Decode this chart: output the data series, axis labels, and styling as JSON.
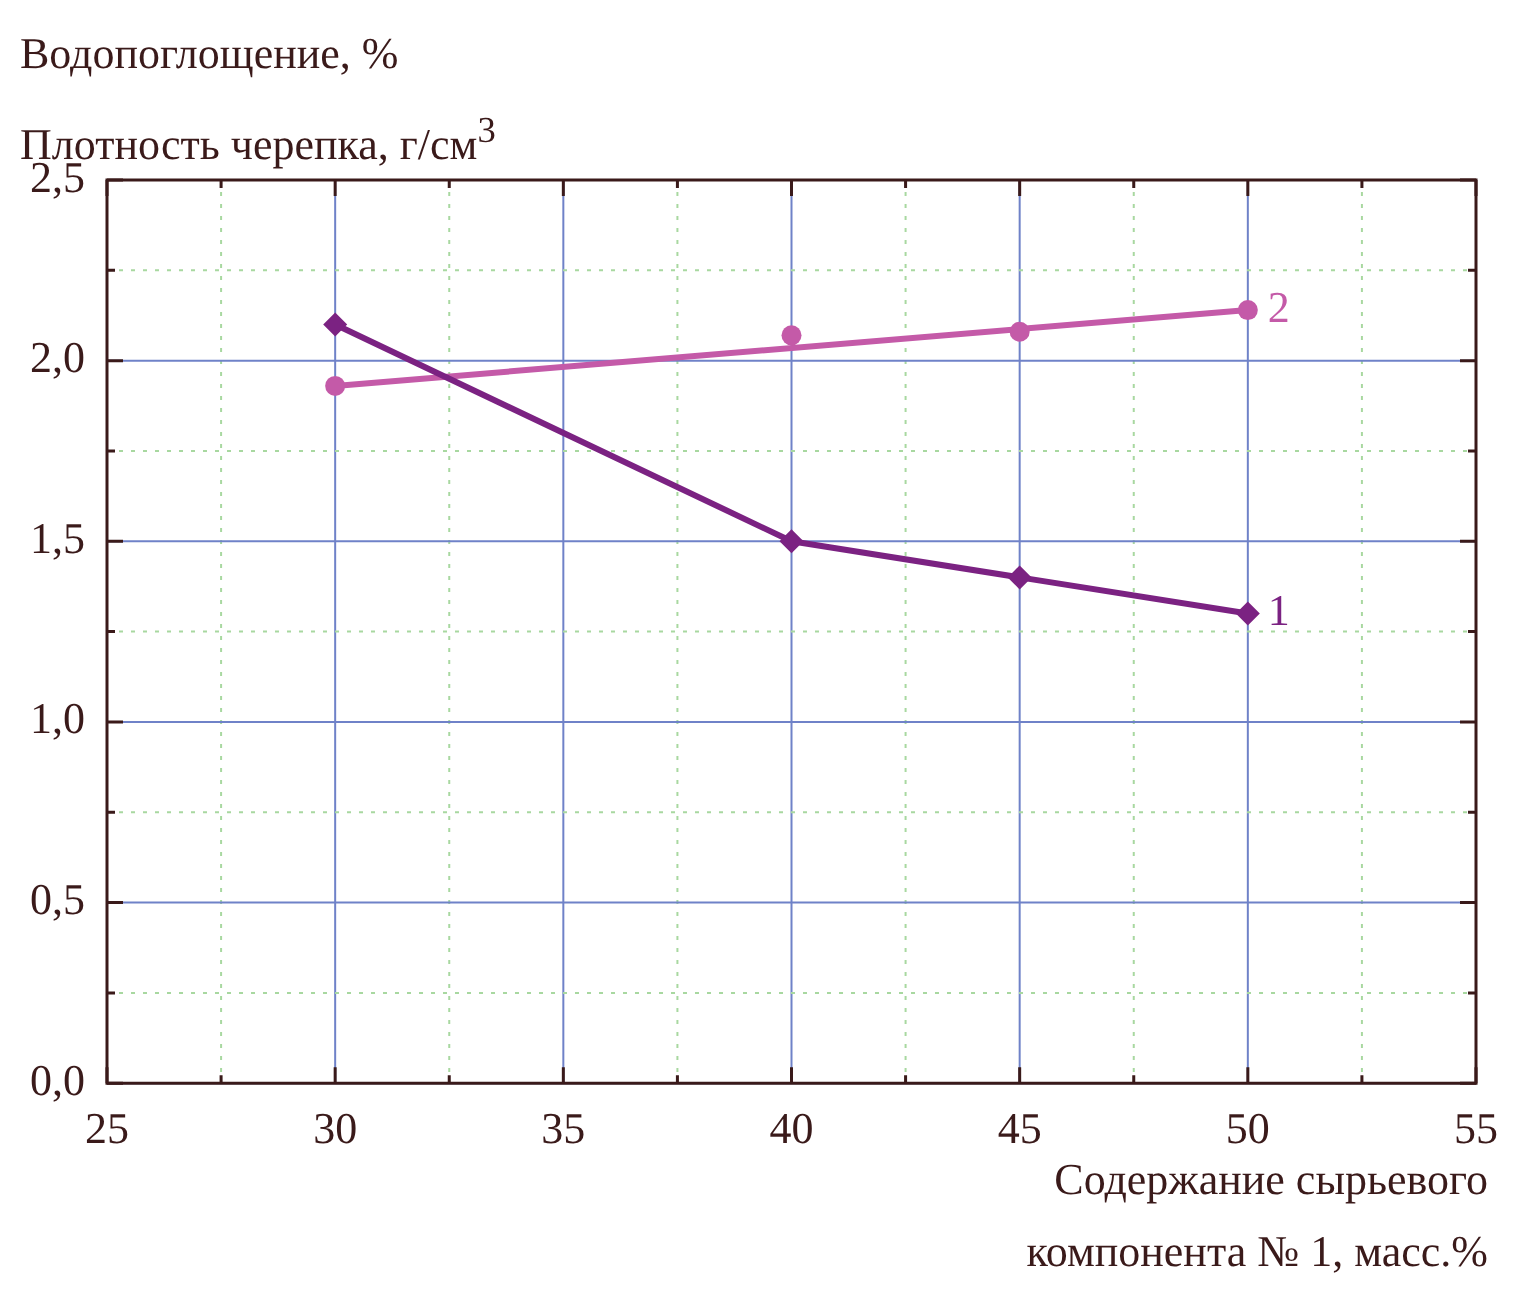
{
  "chart_data": {
    "type": "line",
    "ylabel": "Водопоглощение, %\nПлотность черепка, г/см$^{3}$",
    "xlabel": "Содержание сырьевого\nкомпонента № 1, масс.%",
    "x": [
      30,
      40,
      45,
      50
    ],
    "xlim": [
      25,
      55
    ],
    "xticks": [
      25,
      {
        "value": 27.5,
        "label": null
      },
      30,
      {
        "value": 32.5,
        "label": null
      },
      35,
      {
        "value": 37.5,
        "label": null
      },
      40,
      {
        "value": 42.5,
        "label": null
      },
      45,
      {
        "value": 47.5,
        "label": null
      },
      50,
      {
        "value": 52.5,
        "label": null
      },
      55
    ],
    "ylim": [
      0,
      2.5
    ],
    "yticks": [
      {
        "value": 0,
        "label": "0,0"
      },
      {
        "value": 0.25,
        "label": null
      },
      {
        "value": 0.5,
        "label": "0,5"
      },
      {
        "value": 0.75,
        "label": null
      },
      {
        "value": 1,
        "label": "1,0"
      },
      {
        "value": 1.25,
        "label": null
      },
      {
        "value": 1.5,
        "label": "1,5"
      },
      {
        "value": 1.75,
        "label": null
      },
      {
        "value": 2,
        "label": "2,0"
      },
      {
        "value": 2.25,
        "label": null
      },
      {
        "value": 2.5,
        "label": "2,5"
      }
    ],
    "grid": true,
    "series": [
      {
        "name": "1",
        "type": "line",
        "color": "#7b2282",
        "marker": "diamond",
        "values": [
          2.1,
          1.5,
          1.4,
          1.3
        ]
      },
      {
        "name": "2",
        "type": "scatter",
        "color": "#c45aa8",
        "marker": "circle",
        "values": [
          1.93,
          2.07,
          2.08,
          2.14
        ]
      },
      {
        "type": "line",
        "color": "#c45aa8",
        "marker": "none",
        "x": [
          30,
          50
        ],
        "values": [
          1.93,
          2.14
        ]
      }
    ]
  }
}
